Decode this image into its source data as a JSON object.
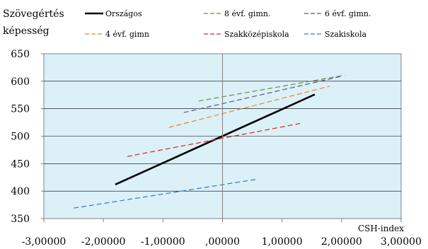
{
  "chart_data": {
    "type": "line",
    "ylabel": [
      "Szövegértés",
      "képesség"
    ],
    "xlabel": "CSH-index",
    "xlim": [
      -3,
      3
    ],
    "ylim": [
      350,
      650
    ],
    "x_ticks": [
      -3,
      -2,
      -1,
      0,
      1,
      2,
      3
    ],
    "x_tick_labels": [
      "-3,00000",
      "-2,00000",
      "-1,00000",
      ",00000",
      "1,00000",
      "2,00000",
      "3,00000"
    ],
    "y_ticks": [
      350,
      400,
      450,
      500,
      550,
      600,
      650
    ],
    "y_tick_labels": [
      "350",
      "400",
      "450",
      "500",
      "550",
      "600",
      "650"
    ],
    "grid": true,
    "plot_background": "#dcf0f8",
    "legend_position": "top",
    "series": [
      {
        "name": "Országos",
        "color": "#000000",
        "dashed": false,
        "x": [
          -1.8,
          1.55
        ],
        "y": [
          412,
          576
        ]
      },
      {
        "name": "8 évf. gimn.",
        "color": "#6e8a3c",
        "dashed": true,
        "x": [
          -0.4,
          2.05
        ],
        "y": [
          564,
          611
        ]
      },
      {
        "name": "6 évf. gimn.",
        "color": "#5e567a",
        "dashed": true,
        "x": [
          -0.65,
          2.0
        ],
        "y": [
          543,
          609
        ]
      },
      {
        "name": "4 évf. gimn",
        "color": "#e8852a",
        "dashed": true,
        "x": [
          -0.9,
          1.8
        ],
        "y": [
          516,
          591
        ]
      },
      {
        "name": "Szakközépiskola",
        "color": "#cc2a2a",
        "dashed": true,
        "x": [
          -1.6,
          1.3
        ],
        "y": [
          463,
          523
        ]
      },
      {
        "name": "Szakiskola",
        "color": "#2e7ac4",
        "dashed": true,
        "x": [
          -2.5,
          0.6
        ],
        "y": [
          369,
          422
        ]
      }
    ]
  }
}
